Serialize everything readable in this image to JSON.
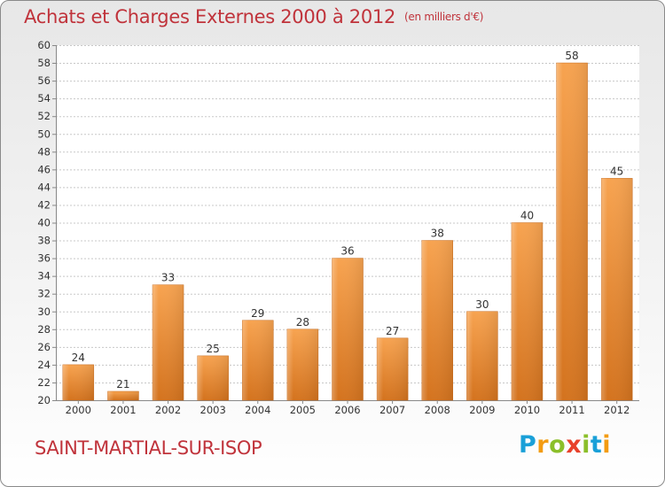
{
  "header": {
    "title": "Achats et Charges Externes 2000 à 2012",
    "unit": "(en milliers d'€)"
  },
  "footer": {
    "commune": "SAINT-MARTIAL-SUR-ISOP",
    "logo": "Proxiti"
  },
  "colors": {
    "title": "#c0333b",
    "bar_light": "#f7a350",
    "bar_dark": "#d4731e",
    "grid": "#c8c8c8"
  },
  "chart_data": {
    "type": "bar",
    "title": "Achats et Charges Externes 2000 à 2012",
    "subtitle": "(en milliers d'€)",
    "xlabel": "",
    "ylabel": "",
    "categories": [
      "2000",
      "2001",
      "2002",
      "2003",
      "2004",
      "2005",
      "2006",
      "2007",
      "2008",
      "2009",
      "2010",
      "2011",
      "2012"
    ],
    "values": [
      24,
      21,
      33,
      25,
      29,
      28,
      36,
      27,
      38,
      30,
      40,
      58,
      45
    ],
    "ylim": [
      20,
      60
    ],
    "ytick_step": 2,
    "grid": true,
    "legend": "none"
  }
}
